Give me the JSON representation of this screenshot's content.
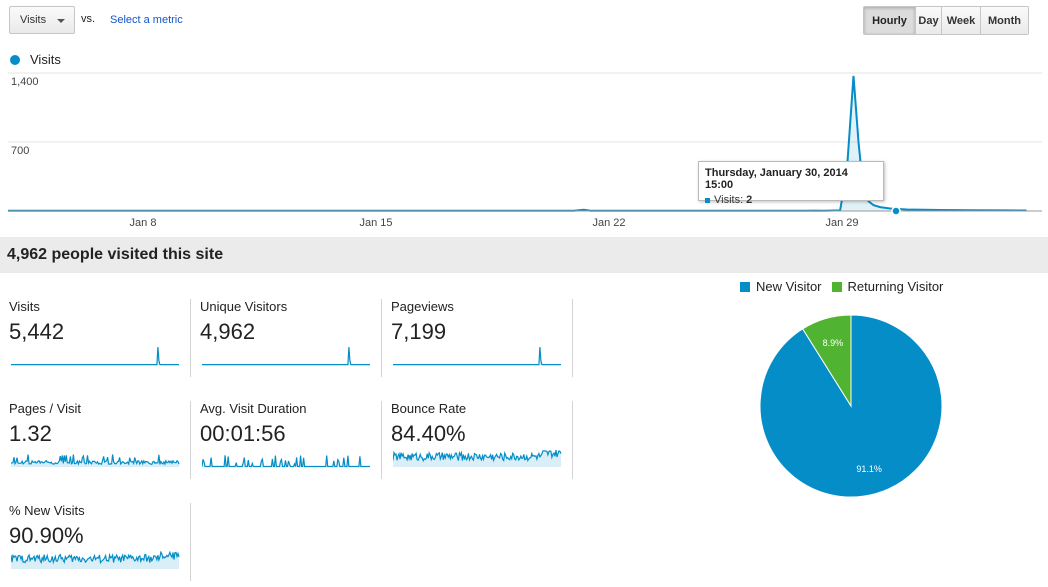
{
  "toolbar": {
    "metric_select": "Visits",
    "vs_label": "vs.",
    "select_metric_link": "Select a metric",
    "ranges": [
      {
        "label": "Hourly",
        "active": true
      },
      {
        "label": "Day",
        "active": false
      },
      {
        "label": "Week",
        "active": false
      },
      {
        "label": "Month",
        "active": false
      }
    ]
  },
  "line_chart": {
    "legend": "Visits",
    "tooltip": {
      "title": "Thursday, January 30, 2014 15:00",
      "series_label": "Visits:",
      "value": "2"
    }
  },
  "chart_data": [
    {
      "type": "line",
      "series": [
        {
          "name": "Visits",
          "color": "#058dc7",
          "x_days": [
            0,
            1,
            2,
            3,
            4,
            5,
            6,
            7,
            8,
            9,
            10,
            11,
            12,
            13,
            14,
            15,
            16,
            17,
            17.3,
            17.5,
            18,
            19,
            20,
            21,
            22,
            23,
            24,
            24.2,
            24.5,
            25,
            25.2,
            25.4,
            25.55,
            25.7,
            25.85,
            26,
            26.2,
            26.5,
            27,
            28,
            29,
            30,
            30.6
          ],
          "values": [
            2,
            3,
            2,
            2,
            3,
            2,
            2,
            3,
            2,
            2,
            3,
            2,
            2,
            3,
            2,
            2,
            3,
            2,
            12,
            2,
            3,
            2,
            2,
            3,
            2,
            3,
            2,
            4,
            2,
            6,
            400,
            1370,
            700,
            200,
            100,
            60,
            40,
            25,
            15,
            10,
            8,
            6,
            5
          ]
        }
      ],
      "x_tick_labels": [
        "Jan 8",
        "Jan 15",
        "Jan 22",
        "Jan 29"
      ],
      "y_tick_labels": [
        "700",
        "1,400"
      ],
      "ylim": [
        0,
        1400
      ],
      "grid": true,
      "legend": "top-left"
    },
    {
      "type": "pie",
      "series": [
        {
          "name": "New Visitor",
          "value": 91.1,
          "color": "#058dc7",
          "label": "91.1%"
        },
        {
          "name": "Returning Visitor",
          "value": 8.9,
          "color": "#50b432",
          "label": "8.9%"
        }
      ],
      "legend": "top"
    }
  ],
  "summary": {
    "title": "4,962 people visited this site"
  },
  "metrics": [
    {
      "label": "Visits",
      "value": "5,442",
      "spark": "spike"
    },
    {
      "label": "Unique Visitors",
      "value": "4,962",
      "spark": "spike"
    },
    {
      "label": "Pageviews",
      "value": "7,199",
      "spark": "spike"
    },
    {
      "label": "Pages / Visit",
      "value": "1.32",
      "spark": "noisy-low"
    },
    {
      "label": "Avg. Visit Duration",
      "value": "00:01:56",
      "spark": "sparse"
    },
    {
      "label": "Bounce Rate",
      "value": "84.40%",
      "spark": "noisy-high"
    },
    {
      "label": "% New Visits",
      "value": "90.90%",
      "spark": "noisy-high"
    }
  ]
}
